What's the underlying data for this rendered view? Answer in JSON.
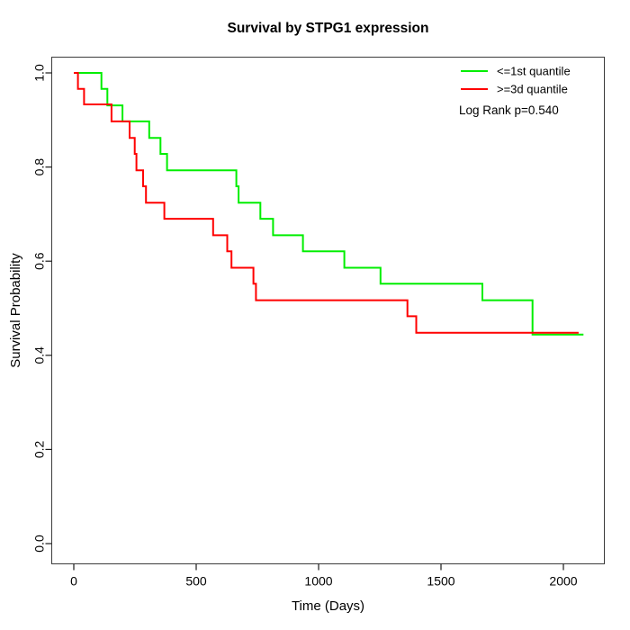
{
  "chart_data": {
    "type": "line",
    "subtype": "kaplan-meier-step",
    "title": "Survival by STPG1 expression",
    "xlabel": "Time (Days)",
    "ylabel": "Survival Probability",
    "xlim": [
      0,
      2100
    ],
    "ylim": [
      0.0,
      1.0
    ],
    "x_ticks": [
      0,
      500,
      1000,
      1500,
      2000
    ],
    "y_ticks": [
      0.0,
      0.2,
      0.4,
      0.6,
      0.8,
      1.0
    ],
    "grid": false,
    "legend_position": "top-right",
    "annotation": "Log Rank p=0.540",
    "series": [
      {
        "name": "<=1st quantile",
        "color": "#00EE00",
        "points": [
          [
            0,
            1.0
          ],
          [
            113,
            0.966
          ],
          [
            137,
            0.931
          ],
          [
            199,
            0.897
          ],
          [
            308,
            0.862
          ],
          [
            354,
            0.828
          ],
          [
            381,
            0.793
          ],
          [
            664,
            0.759
          ],
          [
            673,
            0.724
          ],
          [
            762,
            0.69
          ],
          [
            814,
            0.655
          ],
          [
            936,
            0.621
          ],
          [
            1105,
            0.586
          ],
          [
            1253,
            0.552
          ],
          [
            1669,
            0.517
          ],
          [
            1874,
            0.444
          ]
        ],
        "end_time": 2082
      },
      {
        "name": ">=3d quantile",
        "color": "#FF0000",
        "points": [
          [
            0,
            1.0
          ],
          [
            17,
            0.966
          ],
          [
            42,
            0.933
          ],
          [
            154,
            0.897
          ],
          [
            228,
            0.862
          ],
          [
            249,
            0.828
          ],
          [
            256,
            0.793
          ],
          [
            283,
            0.759
          ],
          [
            295,
            0.724
          ],
          [
            370,
            0.69
          ],
          [
            569,
            0.655
          ],
          [
            627,
            0.621
          ],
          [
            644,
            0.586
          ],
          [
            734,
            0.552
          ],
          [
            744,
            0.517
          ],
          [
            1363,
            0.483
          ],
          [
            1399,
            0.448
          ]
        ],
        "end_time": 2062
      }
    ]
  }
}
